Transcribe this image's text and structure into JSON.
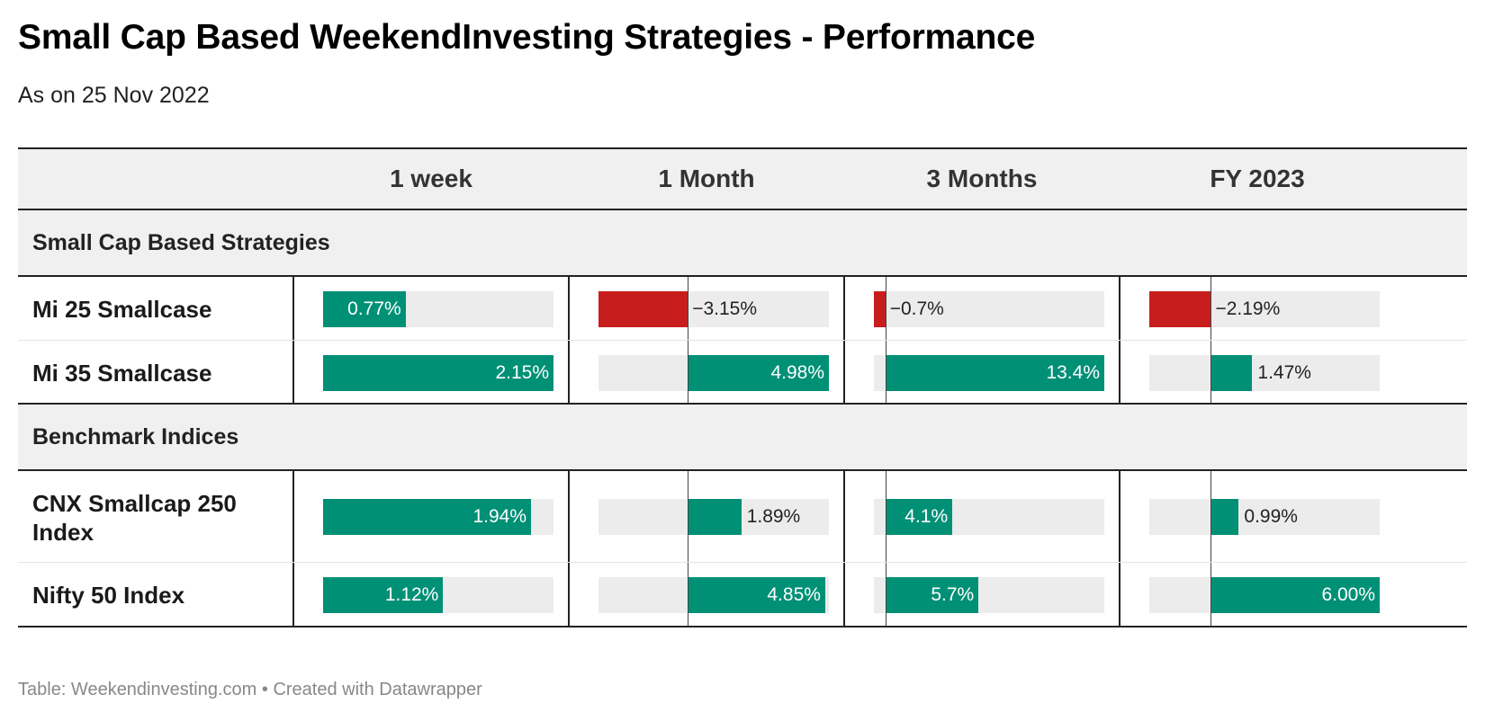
{
  "title": "Small Cap Based WeekendInvesting Strategies - Performance",
  "subtitle": "As on 25 Nov 2022",
  "footer": "Table: Weekendinvesting.com • Created with Datawrapper",
  "colors": {
    "positive": "#009076",
    "negative": "#c71e1d",
    "track": "#ececec",
    "header_bg": "#f0f0f0"
  },
  "chart_data": {
    "type": "table",
    "columns": [
      "1 week",
      "1 Month",
      "3 Months",
      "FY 2023"
    ],
    "column_ranges": [
      [
        0,
        2.15
      ],
      [
        -3.15,
        4.98
      ],
      [
        -0.7,
        13.4
      ],
      [
        -2.19,
        6.0
      ]
    ],
    "groups": [
      {
        "label": "Small Cap Based Strategies",
        "rows": [
          {
            "name": "Mi 25 Smallcase",
            "values": [
              0.77,
              -3.15,
              -0.7,
              -2.19
            ],
            "labels": [
              "0.77%",
              "−3.15%",
              "−0.7%",
              "−2.19%"
            ]
          },
          {
            "name": "Mi 35 Smallcase",
            "values": [
              2.15,
              4.98,
              13.4,
              1.47
            ],
            "labels": [
              "2.15%",
              "4.98%",
              "13.4%",
              "1.47%"
            ]
          }
        ]
      },
      {
        "label": "Benchmark Indices",
        "rows": [
          {
            "name": "CNX Smallcap 250 Index",
            "values": [
              1.94,
              1.89,
              4.1,
              0.99
            ],
            "labels": [
              "1.94%",
              "1.89%",
              "4.1%",
              "0.99%"
            ]
          },
          {
            "name": "Nifty 50 Index",
            "values": [
              1.12,
              4.85,
              5.7,
              6.0
            ],
            "labels": [
              "1.12%",
              "4.85%",
              "5.7%",
              "6.00%"
            ]
          }
        ]
      }
    ]
  }
}
